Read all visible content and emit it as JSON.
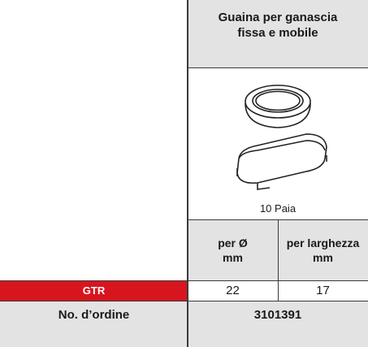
{
  "header": {
    "title": [
      "Guaina per ganascia",
      "fissa e mobile"
    ]
  },
  "image": {
    "caption": "10 Paia"
  },
  "columns": [
    {
      "label": "per Ø",
      "unit": "mm"
    },
    {
      "label": "per larghezza",
      "unit": "mm"
    }
  ],
  "rows": [
    {
      "label": "GTR",
      "values": [
        22,
        17
      ]
    },
    {
      "label": "No. d’ordine",
      "value": 3101391
    }
  ]
}
